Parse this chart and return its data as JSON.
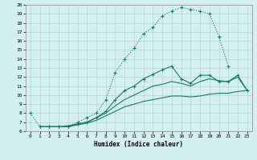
{
  "xlabel": "Humidex (Indice chaleur)",
  "bg_color": "#d4efef",
  "grid_color": "#b8d8d8",
  "line_color": "#1a7a6a",
  "xlim": [
    -0.5,
    23.5
  ],
  "ylim": [
    6,
    20
  ],
  "xticks": [
    0,
    1,
    2,
    3,
    4,
    5,
    6,
    7,
    8,
    9,
    10,
    11,
    12,
    13,
    14,
    15,
    16,
    17,
    18,
    19,
    20,
    21,
    22,
    23
  ],
  "yticks": [
    6,
    7,
    8,
    9,
    10,
    11,
    12,
    13,
    14,
    15,
    16,
    17,
    18,
    19,
    20
  ],
  "line1_x": [
    0,
    1,
    2,
    3,
    4,
    5,
    6,
    7,
    8,
    9,
    10,
    11,
    12,
    13,
    14,
    15,
    16,
    17,
    18,
    19,
    20,
    21
  ],
  "line1_y": [
    8.0,
    6.5,
    6.5,
    6.5,
    6.5,
    7.0,
    7.5,
    8.0,
    9.5,
    12.5,
    14.0,
    15.2,
    16.8,
    17.5,
    18.8,
    19.3,
    19.7,
    19.5,
    19.3,
    19.0,
    16.5,
    13.2
  ],
  "line2_x": [
    1,
    2,
    3,
    4,
    5,
    6,
    7,
    8,
    9,
    10,
    11,
    12,
    13,
    14,
    15,
    16,
    17,
    18,
    19,
    20,
    21,
    22,
    23
  ],
  "line2_y": [
    6.5,
    6.5,
    6.5,
    6.5,
    6.8,
    7.0,
    7.5,
    8.2,
    9.5,
    10.5,
    11.0,
    11.8,
    12.3,
    12.8,
    13.2,
    11.8,
    11.3,
    12.2,
    12.2,
    11.5,
    11.5,
    12.2,
    10.5
  ],
  "line3_x": [
    1,
    2,
    3,
    4,
    5,
    6,
    7,
    8,
    9,
    10,
    11,
    12,
    13,
    14,
    15,
    16,
    17,
    18,
    19,
    20,
    21,
    22,
    23
  ],
  "line3_y": [
    6.5,
    6.5,
    6.5,
    6.6,
    6.8,
    7.0,
    7.5,
    8.0,
    8.8,
    9.5,
    10.0,
    10.5,
    11.0,
    11.2,
    11.5,
    11.3,
    11.0,
    11.5,
    11.8,
    11.6,
    11.5,
    12.0,
    10.5
  ],
  "line4_x": [
    1,
    2,
    3,
    4,
    5,
    6,
    7,
    8,
    9,
    10,
    11,
    12,
    13,
    14,
    15,
    16,
    17,
    18,
    19,
    20,
    21,
    22,
    23
  ],
  "line4_y": [
    6.5,
    6.5,
    6.5,
    6.5,
    6.7,
    6.9,
    7.2,
    7.7,
    8.2,
    8.7,
    9.0,
    9.3,
    9.5,
    9.7,
    9.9,
    9.9,
    9.8,
    9.9,
    10.1,
    10.2,
    10.2,
    10.4,
    10.5
  ]
}
